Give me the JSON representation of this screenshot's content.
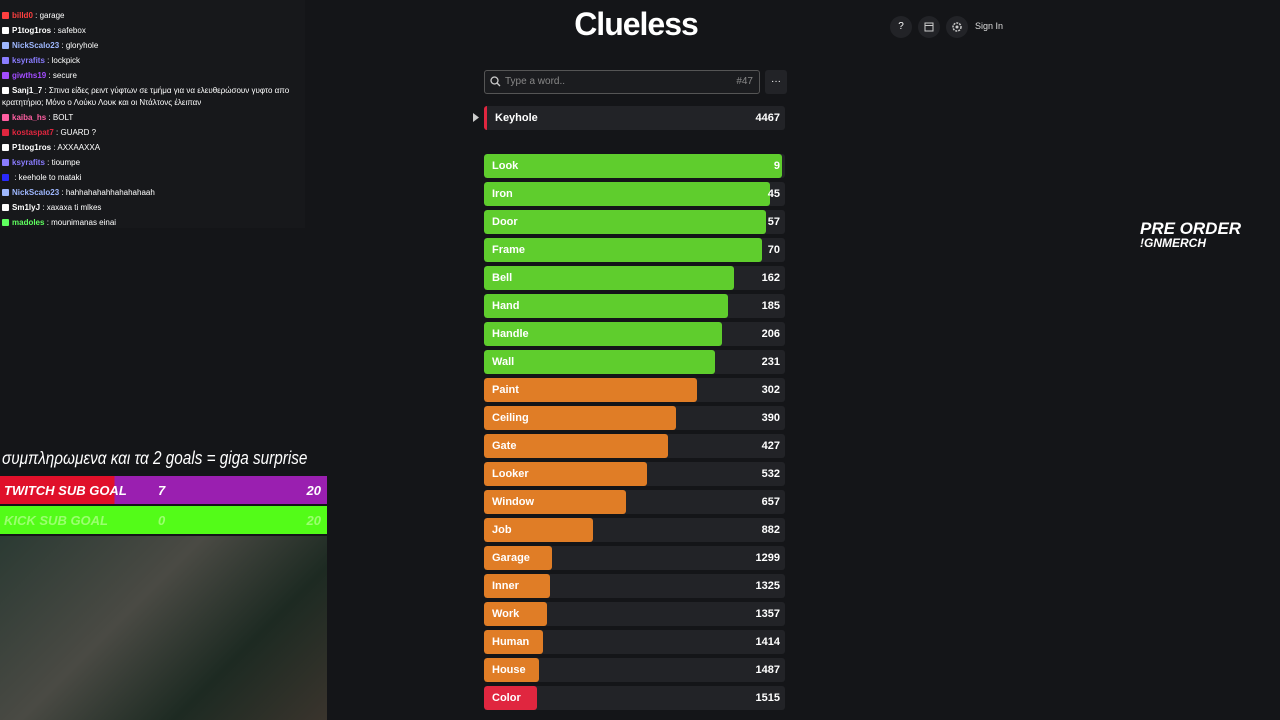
{
  "chat": [
    {
      "user": "billd0",
      "color": "#ff4040",
      "text": "garage"
    },
    {
      "user": "P1tog1ros",
      "color": "#ffffff",
      "text": "safebox"
    },
    {
      "user": "NickScalo23",
      "color": "#9fb8ff",
      "text": "gloryhole"
    },
    {
      "user": "ksyrafits",
      "color": "#8a7cff",
      "text": "lockpick"
    },
    {
      "user": "giwths19",
      "color": "#a24cff",
      "text": "secure"
    },
    {
      "user": "Sanj1_7",
      "color": "#ffffff",
      "text": "Σπινα είδες ρειντ γύφτων σε τμήμα για να ελευθερώσουν γυφτο απο κρατητήριο; Μόνο ο Λούκυ Λουκ και οι Ντάλτονς έλειπαν"
    },
    {
      "user": "kaiba_hs",
      "color": "#ff5fa2",
      "text": "BOLT"
    },
    {
      "user": "kostaspat7",
      "color": "#e0263f",
      "text": "GUARD ?"
    },
    {
      "user": "P1tog1ros",
      "color": "#ffffff",
      "text": "AXXAAXXA"
    },
    {
      "user": "ksyrafits",
      "color": "#8a7cff",
      "text": "tioumpe"
    },
    {
      "color": "#2a2aff",
      "text": "keehole to mataki"
    },
    {
      "user": "NickScalo23",
      "color": "#9fb8ff",
      "text": "hahhahahahhahahahaah"
    },
    {
      "user": "Sm1lyJ",
      "color": "#ffffff",
      "text": "xaxaxa ti mlkes"
    },
    {
      "user": "madoles",
      "color": "#5fff5f",
      "text": "mounimanas einai"
    }
  ],
  "overlay": {
    "caption": "συμπληρωμενα και τα 2 goals = giga surprise",
    "goals": [
      {
        "label": "TWITCH SUB GOAL",
        "current": "7",
        "target": "20",
        "color": "#e0102a",
        "fill": "#9a1fb0"
      },
      {
        "label": "KICK SUB GOAL",
        "current": "0",
        "target": "20",
        "color": "#53fc18",
        "fill": "#53fc18"
      }
    ],
    "promo": [
      "PRE ORDER",
      "!GNMERCH"
    ]
  },
  "game": {
    "title": "Clueless",
    "help": "?",
    "sign_in": "Sign In",
    "placeholder": "Type a word..",
    "game_number": "#47",
    "menu": "···",
    "current": {
      "word": "Keyhole",
      "rank": 4467
    },
    "guesses": [
      {
        "word": "Look",
        "rank": 9,
        "color": "#5fcd2d"
      },
      {
        "word": "Iron",
        "rank": 45,
        "color": "#5fcd2d"
      },
      {
        "word": "Door",
        "rank": 57,
        "color": "#5fcd2d"
      },
      {
        "word": "Frame",
        "rank": 70,
        "color": "#5fcd2d"
      },
      {
        "word": "Bell",
        "rank": 162,
        "color": "#5fcd2d"
      },
      {
        "word": "Hand",
        "rank": 185,
        "color": "#5fcd2d"
      },
      {
        "word": "Handle",
        "rank": 206,
        "color": "#5fcd2d"
      },
      {
        "word": "Wall",
        "rank": 231,
        "color": "#5fcd2d"
      },
      {
        "word": "Paint",
        "rank": 302,
        "color": "#e07d26"
      },
      {
        "word": "Ceiling",
        "rank": 390,
        "color": "#e07d26"
      },
      {
        "word": "Gate",
        "rank": 427,
        "color": "#e07d26"
      },
      {
        "word": "Looker",
        "rank": 532,
        "color": "#e07d26"
      },
      {
        "word": "Window",
        "rank": 657,
        "color": "#e07d26"
      },
      {
        "word": "Job",
        "rank": 882,
        "color": "#e07d26"
      },
      {
        "word": "Garage",
        "rank": 1299,
        "color": "#e07d26"
      },
      {
        "word": "Inner",
        "rank": 1325,
        "color": "#e07d26"
      },
      {
        "word": "Work",
        "rank": 1357,
        "color": "#e07d26"
      },
      {
        "word": "Human",
        "rank": 1414,
        "color": "#e07d26"
      },
      {
        "word": "House",
        "rank": 1487,
        "color": "#e07d26"
      },
      {
        "word": "Color",
        "rank": 1515,
        "color": "#e0263f"
      }
    ]
  }
}
